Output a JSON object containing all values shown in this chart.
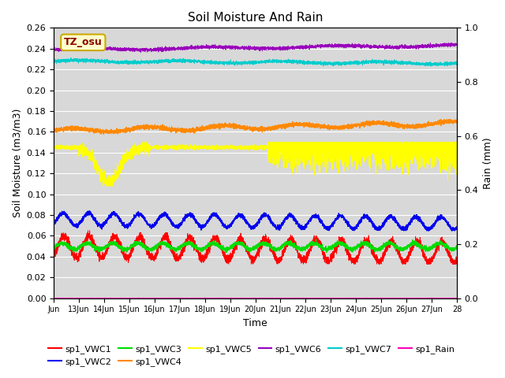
{
  "title": "Soil Moisture And Rain",
  "xlabel": "Time",
  "ylabel_left": "Soil Moisture (m3/m3)",
  "ylabel_right": "Rain (mm)",
  "annotation": "TZ_osu",
  "ylim_left": [
    0.0,
    0.26
  ],
  "ylim_right": [
    0.0,
    1.0
  ],
  "colors": {
    "VWC1": "#ff0000",
    "VWC2": "#0000ee",
    "VWC3": "#00dd00",
    "VWC4": "#ff8800",
    "VWC5": "#ffff00",
    "VWC6": "#9900bb",
    "VWC7": "#00cccc",
    "Rain": "#ff00bb"
  },
  "bg_color": "#d8d8d8",
  "legend_labels": [
    "sp1_VWC1",
    "sp1_VWC2",
    "sp1_VWC3",
    "sp1_VWC4",
    "sp1_VWC5",
    "sp1_VWC6",
    "sp1_VWC7",
    "sp1_Rain"
  ]
}
